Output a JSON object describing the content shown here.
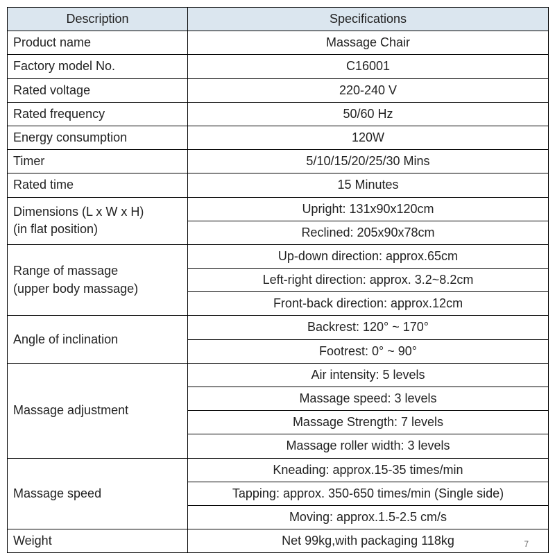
{
  "table": {
    "header": {
      "desc": "Description",
      "spec": "Specifications"
    },
    "header_bg": "#dbe6ef",
    "border_color": "#000000",
    "font_size_pt": 14,
    "rows": [
      {
        "desc": "Product name",
        "specs": [
          "Massage Chair"
        ]
      },
      {
        "desc": "Factory model No.",
        "specs": [
          "C16001"
        ]
      },
      {
        "desc": "Rated voltage",
        "specs": [
          "220-240 V"
        ]
      },
      {
        "desc": "Rated frequency",
        "specs": [
          "50/60 Hz"
        ]
      },
      {
        "desc": "Energy consumption",
        "specs": [
          "120W"
        ]
      },
      {
        "desc": "Timer",
        "specs": [
          "5/10/15/20/25/30 Mins"
        ]
      },
      {
        "desc": "Rated time",
        "specs": [
          "15 Minutes"
        ]
      },
      {
        "desc": "Dimensions (L x W x H)\n(in flat position)",
        "specs": [
          "Upright: 131x90x120cm",
          "Reclined: 205x90x78cm"
        ]
      },
      {
        "desc": "Range of massage\n(upper body massage)",
        "specs": [
          "Up-down direction: approx.65cm",
          "Left-right direction: approx. 3.2~8.2cm",
          "Front-back direction: approx.12cm"
        ]
      },
      {
        "desc": "Angle of inclination",
        "specs": [
          "Backrest: 120°  ~ 170°",
          "Footrest: 0°  ~ 90°"
        ]
      },
      {
        "desc": "Massage adjustment",
        "specs": [
          "Air intensity: 5 levels",
          "Massage speed: 3 levels",
          "Massage Strength: 7 levels",
          "Massage roller width: 3 levels"
        ]
      },
      {
        "desc": "Massage speed",
        "specs": [
          "Kneading: approx.15-35 times/min",
          "Tapping: approx. 350-650 times/min (Single side)",
          "Moving: approx.1.5-2.5 cm/s"
        ]
      },
      {
        "desc": "Weight",
        "specs": [
          "Net 99kg,with packaging 118kg"
        ]
      }
    ],
    "page_number": "7"
  }
}
